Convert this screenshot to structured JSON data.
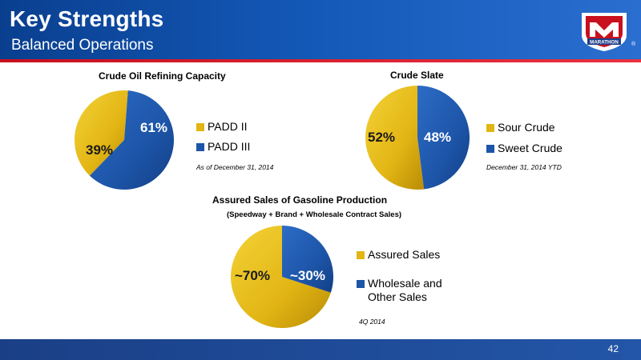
{
  "header": {
    "title": "Key Strengths",
    "subtitle": "Balanced Operations",
    "logo_text": "MARATHON",
    "registered_mark": "®"
  },
  "footer": {
    "page_number": "42"
  },
  "colors": {
    "header_blue": "#1357b5",
    "accent_red": "#c8101e",
    "gold": "#e2b514",
    "blue": "#1d55a8"
  },
  "chart_data": [
    {
      "type": "pie",
      "title": "Crude Oil Refining Capacity",
      "slices": [
        {
          "label": "PADD II",
          "value": 39,
          "display": "39%",
          "color": "#e2b514"
        },
        {
          "label": "PADD III",
          "value": 61,
          "display": "61%",
          "color": "#1d55a8"
        }
      ],
      "legend_position": "right",
      "note": "As of December 31, 2014"
    },
    {
      "type": "pie",
      "title": "Crude Slate",
      "slices": [
        {
          "label": "Sour Crude",
          "value": 52,
          "display": "52%",
          "color": "#e2b514"
        },
        {
          "label": "Sweet Crude",
          "value": 48,
          "display": "48%",
          "color": "#1d55a8"
        }
      ],
      "legend_position": "right",
      "note": "December 31, 2014 YTD"
    },
    {
      "type": "pie",
      "title": "Assured Sales of Gasoline Production",
      "subtitle": "(Speedway + Brand + Wholesale Contract Sales)",
      "slices": [
        {
          "label": "Assured Sales",
          "value": 70,
          "display": "~70%",
          "color": "#e2b514"
        },
        {
          "label": "Wholesale and Other Sales",
          "value": 30,
          "display": "~30%",
          "color": "#1d55a8"
        }
      ],
      "legend_position": "right",
      "note": "4Q 2014"
    }
  ]
}
